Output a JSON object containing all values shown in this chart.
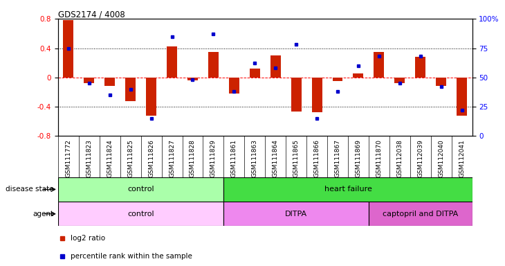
{
  "title": "GDS2174 / 4008",
  "samples": [
    "GSM111772",
    "GSM111823",
    "GSM111824",
    "GSM111825",
    "GSM111826",
    "GSM111827",
    "GSM111828",
    "GSM111829",
    "GSM111861",
    "GSM111863",
    "GSM111864",
    "GSM111865",
    "GSM111866",
    "GSM111867",
    "GSM111869",
    "GSM111870",
    "GSM112038",
    "GSM112039",
    "GSM112040",
    "GSM112041"
  ],
  "log2_ratio": [
    0.78,
    -0.08,
    -0.12,
    -0.32,
    -0.52,
    0.42,
    -0.04,
    0.35,
    -0.22,
    0.12,
    0.3,
    -0.47,
    -0.48,
    -0.05,
    0.05,
    0.35,
    -0.08,
    0.28,
    -0.12,
    -0.52
  ],
  "percentile": [
    75,
    45,
    35,
    40,
    15,
    85,
    48,
    87,
    38,
    62,
    58,
    78,
    15,
    38,
    60,
    68,
    45,
    68,
    42,
    22
  ],
  "disease_state_groups": [
    {
      "label": "control",
      "start": 0,
      "end": 8,
      "color": "#aaffaa"
    },
    {
      "label": "heart failure",
      "start": 8,
      "end": 20,
      "color": "#44dd44"
    }
  ],
  "agent_groups": [
    {
      "label": "control",
      "start": 0,
      "end": 8,
      "color": "#ffccff"
    },
    {
      "label": "DITPA",
      "start": 8,
      "end": 15,
      "color": "#ee88ee"
    },
    {
      "label": "captopril and DITPA",
      "start": 15,
      "end": 20,
      "color": "#dd66cc"
    }
  ],
  "ylim_left": [
    -0.8,
    0.8
  ],
  "ylim_right": [
    0,
    100
  ],
  "bar_color": "#cc2200",
  "dot_color": "#0000cc",
  "bar_width": 0.5,
  "tick_label_fontsize": 6.5
}
